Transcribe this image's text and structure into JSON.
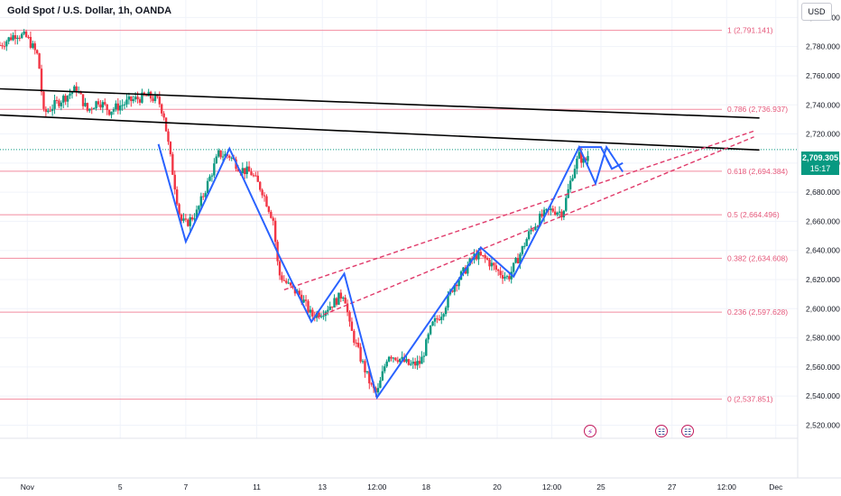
{
  "header": {
    "title": "Gold Spot / U.S. Dollar, 1h, OANDA",
    "currency": "USD"
  },
  "last_price": {
    "price": "2,709.305",
    "countdown": "15:17"
  },
  "events": [
    {
      "name": "earnings-event-icon",
      "glyph": "⚡"
    },
    {
      "name": "us-flag-event-icon",
      "glyph": "☷"
    },
    {
      "name": "us-flag-event-icon",
      "glyph": "☷"
    }
  ],
  "chart_data": {
    "type": "candlestick",
    "title": "",
    "ylim": [
      2511,
      2812
    ],
    "grid": true,
    "y_ticks": [
      {
        "value": 2520,
        "label": "2,520.000"
      },
      {
        "value": 2540,
        "label": "2,540.000"
      },
      {
        "value": 2560,
        "label": "2,560.000"
      },
      {
        "value": 2580,
        "label": "2,580.000"
      },
      {
        "value": 2600,
        "label": "2,600.000"
      },
      {
        "value": 2620,
        "label": "2,620.000"
      },
      {
        "value": 2640,
        "label": "2,640.000"
      },
      {
        "value": 2660,
        "label": "2,660.000"
      },
      {
        "value": 2680,
        "label": "2,680.000"
      },
      {
        "value": 2700,
        "label": "2,700.000"
      },
      {
        "value": 2720,
        "label": "2,720.000"
      },
      {
        "value": 2740,
        "label": "2,740.000"
      },
      {
        "value": 2760,
        "label": "2,760.000"
      },
      {
        "value": 2780,
        "label": "2,780.000"
      },
      {
        "value": 2800,
        "label": "2,800.000"
      }
    ],
    "x_ticks": [
      {
        "t": 5,
        "label": "Nov"
      },
      {
        "t": 22,
        "label": "5"
      },
      {
        "t": 34,
        "label": "7"
      },
      {
        "t": 47,
        "label": "11"
      },
      {
        "t": 59,
        "label": "13"
      },
      {
        "t": 69,
        "label": "12:00"
      },
      {
        "t": 78,
        "label": "18"
      },
      {
        "t": 91,
        "label": "20"
      },
      {
        "t": 101,
        "label": "12:00"
      },
      {
        "t": 110,
        "label": "25"
      },
      {
        "t": 123,
        "label": "27"
      },
      {
        "t": 133,
        "label": "12:00"
      },
      {
        "t": 142,
        "label": "Dec"
      }
    ],
    "fib_levels": [
      {
        "ratio": "1",
        "value": 2791.141
      },
      {
        "ratio": "0.786",
        "value": 2736.937
      },
      {
        "ratio": "0.618",
        "value": 2694.384
      },
      {
        "ratio": "0.5",
        "value": 2664.496
      },
      {
        "ratio": "0.382",
        "value": 2634.608
      },
      {
        "ratio": "0.236",
        "value": 2597.628
      },
      {
        "ratio": "0",
        "value": 2537.851
      }
    ],
    "last_price": 2709.305,
    "trendlines_black": [
      {
        "from": [
          0,
          2751
        ],
        "to": [
          139,
          2731
        ]
      },
      {
        "from": [
          0,
          2733
        ],
        "to": [
          139,
          2709
        ]
      }
    ],
    "dashed_channel": [
      {
        "from": [
          52,
          2613
        ],
        "to": [
          138,
          2722
        ]
      },
      {
        "from": [
          58,
          2594
        ],
        "to": [
          138,
          2718
        ]
      }
    ],
    "zigzag": [
      [
        29,
        2713
      ],
      [
        34,
        2646
      ],
      [
        42,
        2710
      ],
      [
        51,
        2637
      ],
      [
        57,
        2591
      ],
      [
        63,
        2624
      ],
      [
        69,
        2539
      ],
      [
        88,
        2642
      ],
      [
        94,
        2622
      ],
      [
        101,
        2673
      ],
      [
        106,
        2711
      ],
      [
        109,
        2686
      ],
      [
        111,
        2711
      ],
      [
        114,
        2694
      ]
    ],
    "projection": [
      [
        106,
        2711
      ],
      [
        110,
        2711
      ],
      [
        112,
        2696
      ]
    ],
    "projection_arrow": [
      [
        111,
        2703
      ],
      [
        112,
        2696
      ],
      [
        114,
        2700
      ]
    ],
    "candle_path": [
      [
        0,
        2781
      ],
      [
        3,
        2789
      ],
      [
        5,
        2786
      ],
      [
        7,
        2773
      ],
      [
        8,
        2734
      ],
      [
        11,
        2743
      ],
      [
        14,
        2751
      ],
      [
        16,
        2736
      ],
      [
        18,
        2743
      ],
      [
        20,
        2736
      ],
      [
        24,
        2743
      ],
      [
        27,
        2746
      ],
      [
        29,
        2743
      ],
      [
        30,
        2733
      ],
      [
        31,
        2708
      ],
      [
        33,
        2661
      ],
      [
        34,
        2658
      ],
      [
        36,
        2666
      ],
      [
        38,
        2686
      ],
      [
        40,
        2706
      ],
      [
        42,
        2705
      ],
      [
        44,
        2696
      ],
      [
        46,
        2693
      ],
      [
        48,
        2681
      ],
      [
        50,
        2661
      ],
      [
        51,
        2624
      ],
      [
        53,
        2615
      ],
      [
        55,
        2609
      ],
      [
        57,
        2595
      ],
      [
        59,
        2598
      ],
      [
        61,
        2604
      ],
      [
        63,
        2611
      ],
      [
        64,
        2588
      ],
      [
        66,
        2566
      ],
      [
        68,
        2546
      ],
      [
        69,
        2541
      ],
      [
        71,
        2569
      ],
      [
        73,
        2566
      ],
      [
        75,
        2561
      ],
      [
        77,
        2563
      ],
      [
        79,
        2588
      ],
      [
        81,
        2598
      ],
      [
        83,
        2616
      ],
      [
        85,
        2626
      ],
      [
        87,
        2637
      ],
      [
        89,
        2634
      ],
      [
        91,
        2626
      ],
      [
        93,
        2621
      ],
      [
        95,
        2636
      ],
      [
        97,
        2653
      ],
      [
        99,
        2663
      ],
      [
        101,
        2668
      ],
      [
        103,
        2666
      ],
      [
        105,
        2696
      ],
      [
        106,
        2705
      ],
      [
        107,
        2700
      ],
      [
        108,
        2709
      ]
    ]
  }
}
